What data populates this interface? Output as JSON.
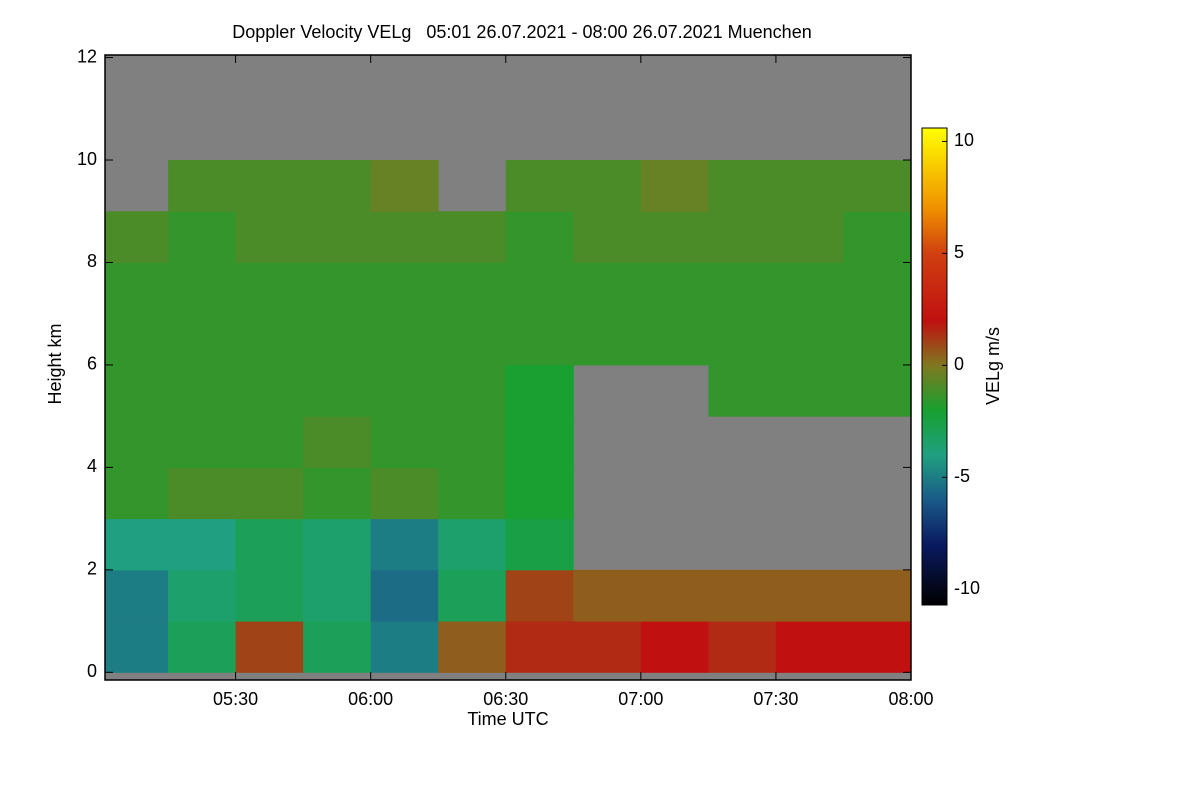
{
  "chart_data": {
    "type": "heatmap",
    "title": "Doppler Velocity VELg   05:01 26.07.2021 - 08:00 26.07.2021 Muenchen",
    "x_label": "Time UTC",
    "y_label": "Height km",
    "colorbar_label": "VELg m/s",
    "xlim": [
      5.016667,
      8.0
    ],
    "xticks": [
      {
        "value": 5.5,
        "label": "05:30"
      },
      {
        "value": 6.0,
        "label": "06:00"
      },
      {
        "value": 6.5,
        "label": "06:30"
      },
      {
        "value": 7.0,
        "label": "07:00"
      },
      {
        "value": 7.5,
        "label": "07:30"
      },
      {
        "value": 8.0,
        "label": "08:00"
      }
    ],
    "ylim": [
      -0.15,
      12.05
    ],
    "yticks": [
      0,
      2,
      4,
      6,
      8,
      10,
      12
    ],
    "zlim": [
      -10.7,
      10.6
    ],
    "zticks": [
      -10,
      -5,
      0,
      5,
      10
    ],
    "missing_color": "#808080",
    "colorscale": [
      {
        "value": -10.7,
        "color": "#000000"
      },
      {
        "value": -8,
        "color": "#0a1a60"
      },
      {
        "value": -6,
        "color": "#1a5a88"
      },
      {
        "value": -4,
        "color": "#20a080"
      },
      {
        "value": -2,
        "color": "#18a030"
      },
      {
        "value": 0,
        "color": "#807820"
      },
      {
        "value": 2,
        "color": "#c01010"
      },
      {
        "value": 5,
        "color": "#d04010"
      },
      {
        "value": 7,
        "color": "#f09000"
      },
      {
        "value": 10.6,
        "color": "#ffff00"
      }
    ],
    "x_edges": [
      5.016667,
      5.25,
      5.5,
      5.75,
      6.0,
      6.25,
      6.5,
      6.75,
      7.0,
      7.25,
      7.5,
      7.75,
      8.0
    ],
    "y_edges": [
      0,
      1,
      2,
      3,
      4,
      5,
      6,
      7,
      8,
      9,
      10,
      11,
      12
    ],
    "z": [
      [
        -5,
        -3,
        1,
        -3,
        -5,
        0.5,
        1.5,
        1.5,
        2,
        1.5,
        2,
        2
      ],
      [
        -5,
        -3.5,
        -3,
        -3.5,
        -5.5,
        -3,
        1,
        0.5,
        0.5,
        0.5,
        0.5,
        0.5
      ],
      [
        -4,
        -4,
        -3,
        -3.5,
        -5,
        -3.5,
        -2.5,
        null,
        null,
        null,
        null,
        null
      ],
      [
        -1.5,
        -1,
        -1,
        -1.5,
        -1,
        -1.5,
        -2,
        null,
        null,
        null,
        null,
        null
      ],
      [
        -1.5,
        -1.5,
        -1.5,
        -1,
        -1.5,
        -1.5,
        -2,
        null,
        null,
        null,
        null,
        null
      ],
      [
        -1.5,
        -1.5,
        -1.5,
        -1.5,
        -1.5,
        -1.5,
        -2,
        null,
        null,
        -1.5,
        -1.5,
        -1.5
      ],
      [
        -1.5,
        -1.5,
        -1.5,
        -1.5,
        -1.5,
        -1.5,
        -1.5,
        -1.5,
        -1.5,
        -1.5,
        -1.5,
        -1.5
      ],
      [
        -1.5,
        -1.5,
        -1.5,
        -1.5,
        -1.5,
        -1.5,
        -1.5,
        -1.5,
        -1.5,
        -1.5,
        -1.5,
        -1.5
      ],
      [
        -1,
        -1.5,
        -1,
        -1,
        -1,
        -1,
        -1.5,
        -1,
        -1,
        -1,
        -1,
        -1.5
      ],
      [
        null,
        -1,
        -1,
        -1,
        -0.5,
        null,
        -1,
        -1,
        -0.5,
        -1,
        -1,
        -1
      ],
      [
        null,
        null,
        null,
        null,
        null,
        null,
        null,
        null,
        null,
        null,
        null,
        null
      ],
      [
        null,
        null,
        null,
        null,
        null,
        null,
        null,
        null,
        null,
        null,
        null,
        null
      ]
    ]
  }
}
